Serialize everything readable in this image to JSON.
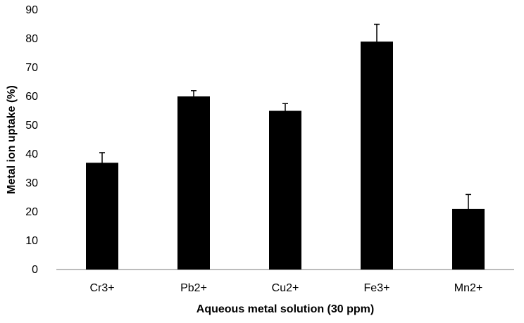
{
  "chart_data": {
    "type": "bar",
    "title": "",
    "xlabel": "Aqueous metal solution (30 ppm)",
    "ylabel": "Metal ion uptake (%)",
    "categories": [
      "Cr3+",
      "Pb2+",
      "Cu2+",
      "Fe3+",
      "Mn2+"
    ],
    "values": [
      37,
      60,
      55,
      79,
      21
    ],
    "error": [
      3.5,
      2,
      2.5,
      6,
      5
    ],
    "ylim": [
      0,
      90
    ],
    "yticks": [
      0,
      10,
      20,
      30,
      40,
      50,
      60,
      70,
      80,
      90
    ],
    "grid": false,
    "legend": "none",
    "bar_color": "#000000",
    "axis_color": "#a6a6a6"
  }
}
